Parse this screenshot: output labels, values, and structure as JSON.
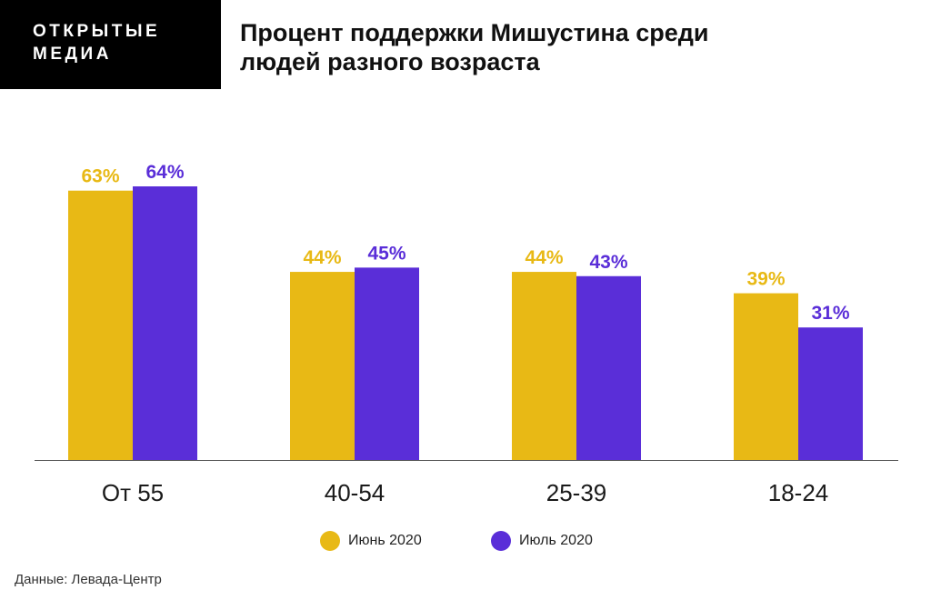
{
  "brand": {
    "line1": "ОТКРЫТЫЕ",
    "line2": "МЕДИА"
  },
  "header": {
    "title_line1": "Процент поддержки Мишустина среди",
    "title_line2": "людей разного возраста"
  },
  "chart_data": {
    "type": "bar",
    "title": "Процент поддержки Мишустина среди людей разного возраста",
    "categories": [
      "От 55",
      "40-54",
      "25-39",
      "18-24"
    ],
    "series": [
      {
        "name": "Июнь 2020",
        "values": [
          63,
          44,
          44,
          39
        ],
        "labels": [
          "63%",
          "44%",
          "44%",
          "39%"
        ],
        "color": "#E8B915"
      },
      {
        "name": "Июль 2020",
        "values": [
          64,
          45,
          43,
          31
        ],
        "labels": [
          "64%",
          "45%",
          "43%",
          "31%"
        ],
        "color": "#5A2ED8"
      }
    ],
    "unit": "%",
    "ylim": [
      0,
      64
    ],
    "grid": false,
    "legend_position": "bottom"
  },
  "legend": {
    "items": [
      {
        "label": "Июнь 2020",
        "color": "#E8B915"
      },
      {
        "label": "Июль 2020",
        "color": "#5A2ED8"
      }
    ]
  },
  "source": "Данные: Левада-Центр"
}
